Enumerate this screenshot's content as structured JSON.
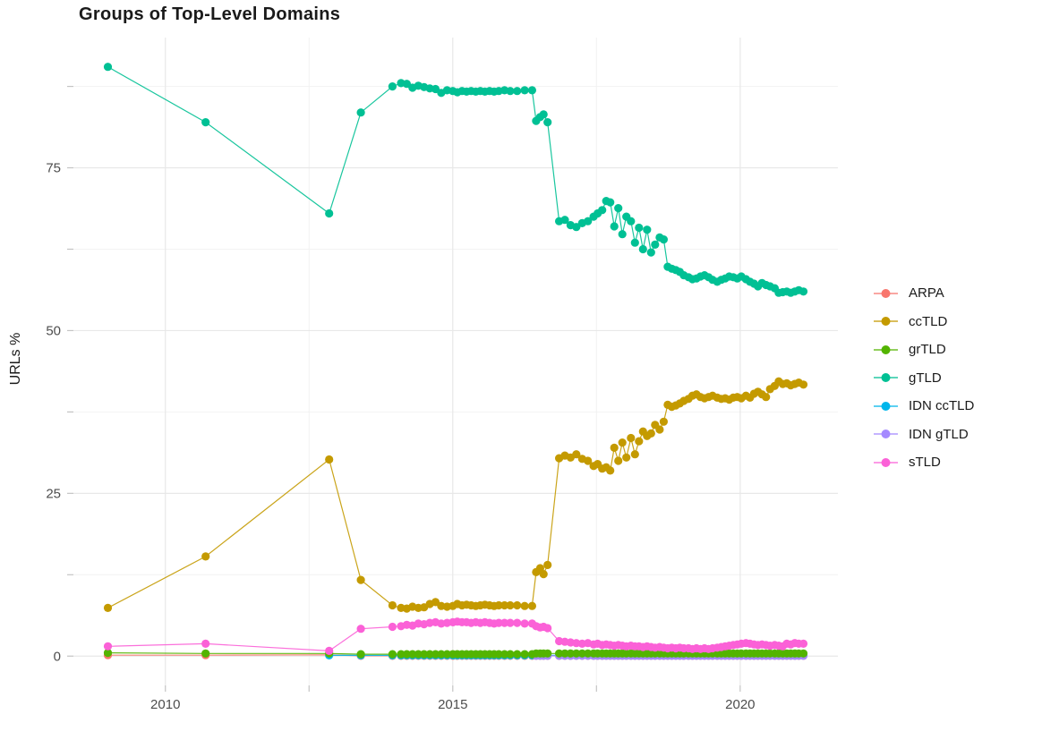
{
  "title": "Groups of Top-Level Domains",
  "axes": {
    "y_label": "URLs %",
    "x_major_ticks": [
      {
        "v": 2010,
        "label": "2010"
      },
      {
        "v": 2015,
        "label": "2015"
      },
      {
        "v": 2020,
        "label": "2020"
      }
    ],
    "x_minor_ticks": [
      2012.5,
      2017.5
    ],
    "y_major_ticks": [
      {
        "v": 0,
        "label": "0"
      },
      {
        "v": 25,
        "label": "25"
      },
      {
        "v": 50,
        "label": "50"
      },
      {
        "v": 75,
        "label": "75"
      }
    ],
    "y_minor_ticks": [
      12.5,
      37.5,
      62.5,
      87.5
    ],
    "grid_major_color": "#e8e8e8",
    "grid_minor_color": "#f2f2f2",
    "tick_color": "#c4c4c4",
    "tick_label_color": "#4d4d4d"
  },
  "legend": {
    "items": [
      {
        "label": "ARPA",
        "color": "#F8766D"
      },
      {
        "label": "ccTLD",
        "color": "#C49A00"
      },
      {
        "label": "grTLD",
        "color": "#53B400"
      },
      {
        "label": "gTLD",
        "color": "#00C094"
      },
      {
        "label": "IDN ccTLD",
        "color": "#00B6EB"
      },
      {
        "label": "IDN gTLD",
        "color": "#A58AFF"
      },
      {
        "label": "sTLD",
        "color": "#FB61D7"
      }
    ]
  },
  "chart_data": {
    "type": "line",
    "title": "Groups of Top-Level Domains",
    "xlabel": "",
    "ylabel": "URLs %",
    "xlim": [
      2008.4,
      2021.7
    ],
    "ylim": [
      -4.5,
      95
    ],
    "grid": true,
    "legend_position": "right",
    "x": [
      2009.0,
      2010.7,
      2012.85,
      2013.4,
      2013.95,
      2014.1,
      2014.2,
      2014.3,
      2014.4,
      2014.5,
      2014.6,
      2014.7,
      2014.8,
      2014.9,
      2015.0,
      2015.08,
      2015.16,
      2015.24,
      2015.32,
      2015.4,
      2015.48,
      2015.56,
      2015.64,
      2015.72,
      2015.8,
      2015.9,
      2016.0,
      2016.12,
      2016.25,
      2016.38,
      2016.45,
      2016.52,
      2016.58,
      2016.65,
      2016.85,
      2016.95,
      2017.05,
      2017.15,
      2017.25,
      2017.35,
      2017.45,
      2017.52,
      2017.6,
      2017.67,
      2017.74,
      2017.81,
      2017.88,
      2017.95,
      2018.02,
      2018.1,
      2018.17,
      2018.24,
      2018.31,
      2018.38,
      2018.45,
      2018.52,
      2018.6,
      2018.67,
      2018.74,
      2018.81,
      2018.88,
      2018.95,
      2019.02,
      2019.1,
      2019.17,
      2019.24,
      2019.31,
      2019.38,
      2019.45,
      2019.52,
      2019.6,
      2019.67,
      2019.74,
      2019.81,
      2019.88,
      2019.95,
      2020.02,
      2020.1,
      2020.17,
      2020.24,
      2020.31,
      2020.38,
      2020.45,
      2020.52,
      2020.6,
      2020.67,
      2020.74,
      2020.81,
      2020.88,
      2020.95,
      2021.02,
      2021.1
    ],
    "series": [
      {
        "name": "ARPA",
        "color": "#F8766D",
        "values": [
          0.15,
          0.15,
          0.2,
          0.05,
          0.05,
          0.05,
          0.05,
          0.05,
          0.05,
          0.05,
          0.05,
          0.05,
          0.05,
          0.05,
          0.05,
          0.05,
          0.05,
          0.05,
          0.05,
          0.05,
          0.05,
          0.05,
          0.05,
          0.05,
          0.05,
          0.05,
          0.05,
          0.05,
          0.05,
          0.05,
          0.05,
          0.05,
          0.05,
          0.05,
          0.05,
          0.05,
          0.05,
          0.05,
          0.05,
          0.05,
          0.05,
          0.05,
          0.05,
          0.05,
          0.05,
          0.05,
          0.05,
          0.05,
          0.05,
          0.05,
          0.05,
          0.05,
          0.05,
          0.05,
          0.05,
          0.05,
          0.05,
          0.05,
          0.05,
          0.05,
          0.05,
          0.05,
          0.05,
          0.05,
          0.05,
          0.05,
          0.05,
          0.05,
          0.05,
          0.05,
          0.05,
          0.05,
          0.05,
          0.05,
          0.05,
          0.05,
          0.05,
          0.05,
          0.05,
          0.05,
          0.05,
          0.05,
          0.05,
          0.05,
          0.05,
          0.05,
          0.05,
          0.05,
          0.05,
          0.05,
          0.05,
          0.05
        ]
      },
      {
        "name": "IDN ccTLD",
        "color": "#00B6EB",
        "values": [
          null,
          null,
          0.12,
          0.12,
          0.12,
          0.12,
          0.12,
          0.12,
          0.12,
          0.12,
          0.12,
          0.12,
          0.12,
          0.12,
          0.12,
          0.12,
          0.12,
          0.12,
          0.12,
          0.12,
          0.12,
          0.12,
          0.12,
          0.12,
          0.12,
          0.12,
          0.12,
          0.12,
          0.12,
          0.12,
          0.12,
          0.12,
          0.12,
          0.12,
          0.12,
          0.12,
          0.12,
          0.12,
          0.12,
          0.12,
          0.12,
          0.12,
          0.12,
          0.12,
          0.12,
          0.12,
          0.12,
          0.12,
          0.12,
          0.12,
          0.12,
          0.12,
          0.12,
          0.12,
          0.12,
          0.12,
          0.12,
          0.12,
          0.12,
          0.12,
          0.12,
          0.12,
          0.12,
          0.12,
          0.12,
          0.12,
          0.12,
          0.12,
          0.12,
          0.12,
          0.12,
          0.12,
          0.12,
          0.12,
          0.12,
          0.12,
          0.12,
          0.12,
          0.12,
          0.12,
          0.12,
          0.12,
          0.12,
          0.12,
          0.12,
          0.12,
          0.12,
          0.12,
          0.12,
          0.12,
          0.12,
          0.12
        ]
      },
      {
        "name": "IDN gTLD",
        "color": "#A58AFF",
        "values": [
          null,
          null,
          null,
          null,
          null,
          null,
          null,
          null,
          null,
          null,
          null,
          null,
          null,
          null,
          null,
          null,
          null,
          null,
          null,
          null,
          null,
          null,
          null,
          null,
          null,
          null,
          null,
          null,
          null,
          null,
          0.05,
          0.05,
          0.05,
          0.05,
          0.05,
          0.05,
          0.05,
          0.05,
          0.05,
          0.05,
          0.05,
          0.05,
          0.05,
          0.05,
          0.05,
          0.05,
          0.05,
          0.05,
          0.05,
          0.05,
          0.05,
          0.05,
          0.05,
          0.05,
          0.05,
          0.05,
          0.05,
          0.05,
          0.05,
          0.05,
          0.05,
          0.05,
          0.05,
          0.05,
          0.05,
          0.05,
          0.05,
          0.05,
          0.05,
          0.05,
          0.05,
          0.05,
          0.05,
          0.05,
          0.05,
          0.05,
          0.05,
          0.05,
          0.05,
          0.05,
          0.05,
          0.05,
          0.05,
          0.05,
          0.05,
          0.05,
          0.05,
          0.05,
          0.05,
          0.05,
          0.05,
          0.05
        ]
      },
      {
        "name": "grTLD",
        "color": "#53B400",
        "values": [
          0.5,
          0.4,
          0.4,
          0.3,
          0.3,
          0.3,
          0.3,
          0.3,
          0.3,
          0.3,
          0.3,
          0.3,
          0.3,
          0.3,
          0.3,
          0.3,
          0.3,
          0.3,
          0.3,
          0.3,
          0.3,
          0.3,
          0.3,
          0.3,
          0.3,
          0.3,
          0.3,
          0.3,
          0.3,
          0.3,
          0.4,
          0.4,
          0.4,
          0.4,
          0.4,
          0.4,
          0.4,
          0.4,
          0.4,
          0.4,
          0.4,
          0.4,
          0.4,
          0.4,
          0.4,
          0.4,
          0.4,
          0.4,
          0.4,
          0.4,
          0.4,
          0.4,
          0.4,
          0.4,
          0.4,
          0.4,
          0.4,
          0.4,
          0.4,
          0.4,
          0.4,
          0.4,
          0.4,
          0.4,
          0.4,
          0.4,
          0.4,
          0.4,
          0.4,
          0.4,
          0.4,
          0.4,
          0.4,
          0.4,
          0.4,
          0.4,
          0.4,
          0.4,
          0.4,
          0.4,
          0.4,
          0.4,
          0.4,
          0.4,
          0.4,
          0.4,
          0.4,
          0.4,
          0.4,
          0.4,
          0.4,
          0.4
        ]
      },
      {
        "name": "ccTLD",
        "color": "#C49A00",
        "values": [
          7.4,
          15.3,
          30.2,
          11.7,
          7.8,
          7.4,
          7.3,
          7.6,
          7.4,
          7.5,
          8.0,
          8.3,
          7.7,
          7.6,
          7.7,
          8.0,
          7.8,
          7.9,
          7.8,
          7.7,
          7.8,
          7.9,
          7.8,
          7.7,
          7.8,
          7.8,
          7.8,
          7.8,
          7.7,
          7.7,
          12.9,
          13.5,
          12.6,
          14.0,
          30.4,
          30.8,
          30.5,
          31.0,
          30.3,
          30.0,
          29.2,
          29.5,
          28.8,
          29.0,
          28.5,
          32.0,
          30.0,
          32.8,
          30.5,
          33.5,
          31.0,
          33.0,
          34.5,
          33.8,
          34.2,
          35.5,
          34.8,
          36.0,
          38.6,
          38.3,
          38.5,
          38.8,
          39.2,
          39.5,
          40.0,
          40.2,
          39.8,
          39.6,
          39.8,
          40.0,
          39.7,
          39.5,
          39.6,
          39.4,
          39.7,
          39.8,
          39.6,
          40.0,
          39.7,
          40.3,
          40.6,
          40.2,
          39.8,
          41.0,
          41.5,
          42.2,
          41.8,
          41.9,
          41.6,
          41.8,
          42.0,
          41.7
        ]
      },
      {
        "name": "gTLD",
        "color": "#00C094",
        "values": [
          90.5,
          82.0,
          68.0,
          83.5,
          87.5,
          88.0,
          87.9,
          87.3,
          87.6,
          87.4,
          87.2,
          87.1,
          86.5,
          86.9,
          86.8,
          86.6,
          86.8,
          86.7,
          86.8,
          86.7,
          86.8,
          86.7,
          86.8,
          86.7,
          86.8,
          86.9,
          86.8,
          86.8,
          86.9,
          86.9,
          82.2,
          82.8,
          83.2,
          82.0,
          66.8,
          67.0,
          66.2,
          65.9,
          66.5,
          66.8,
          67.5,
          68.0,
          68.5,
          69.9,
          69.7,
          66.0,
          68.8,
          64.8,
          67.5,
          66.8,
          63.5,
          65.8,
          62.5,
          65.5,
          62.0,
          63.2,
          64.3,
          64.0,
          59.8,
          59.5,
          59.3,
          59.0,
          58.5,
          58.2,
          57.9,
          58.0,
          58.3,
          58.5,
          58.2,
          57.8,
          57.5,
          57.8,
          58.0,
          58.3,
          58.2,
          58.0,
          58.3,
          57.9,
          57.5,
          57.2,
          56.8,
          57.3,
          57.0,
          56.8,
          56.5,
          55.8,
          55.9,
          56.0,
          55.8,
          56.0,
          56.2,
          56.0
        ]
      },
      {
        "name": "sTLD",
        "color": "#FB61D7",
        "values": [
          1.5,
          1.9,
          0.8,
          4.2,
          4.5,
          4.6,
          4.8,
          4.7,
          5.0,
          4.9,
          5.1,
          5.2,
          5.0,
          5.1,
          5.2,
          5.3,
          5.2,
          5.2,
          5.1,
          5.2,
          5.1,
          5.2,
          5.1,
          5.0,
          5.1,
          5.1,
          5.1,
          5.1,
          5.0,
          5.0,
          4.6,
          4.4,
          4.5,
          4.3,
          2.3,
          2.2,
          2.1,
          2.0,
          1.9,
          2.0,
          1.8,
          1.9,
          1.7,
          1.8,
          1.7,
          1.6,
          1.7,
          1.6,
          1.5,
          1.6,
          1.5,
          1.5,
          1.4,
          1.5,
          1.4,
          1.3,
          1.4,
          1.3,
          1.2,
          1.3,
          1.2,
          1.3,
          1.2,
          1.2,
          1.1,
          1.2,
          1.1,
          1.2,
          1.1,
          1.2,
          1.3,
          1.4,
          1.5,
          1.6,
          1.7,
          1.8,
          1.9,
          2.0,
          1.9,
          1.8,
          1.7,
          1.8,
          1.7,
          1.6,
          1.7,
          1.6,
          1.5,
          1.9,
          1.8,
          2.0,
          1.9,
          1.9
        ]
      }
    ]
  }
}
